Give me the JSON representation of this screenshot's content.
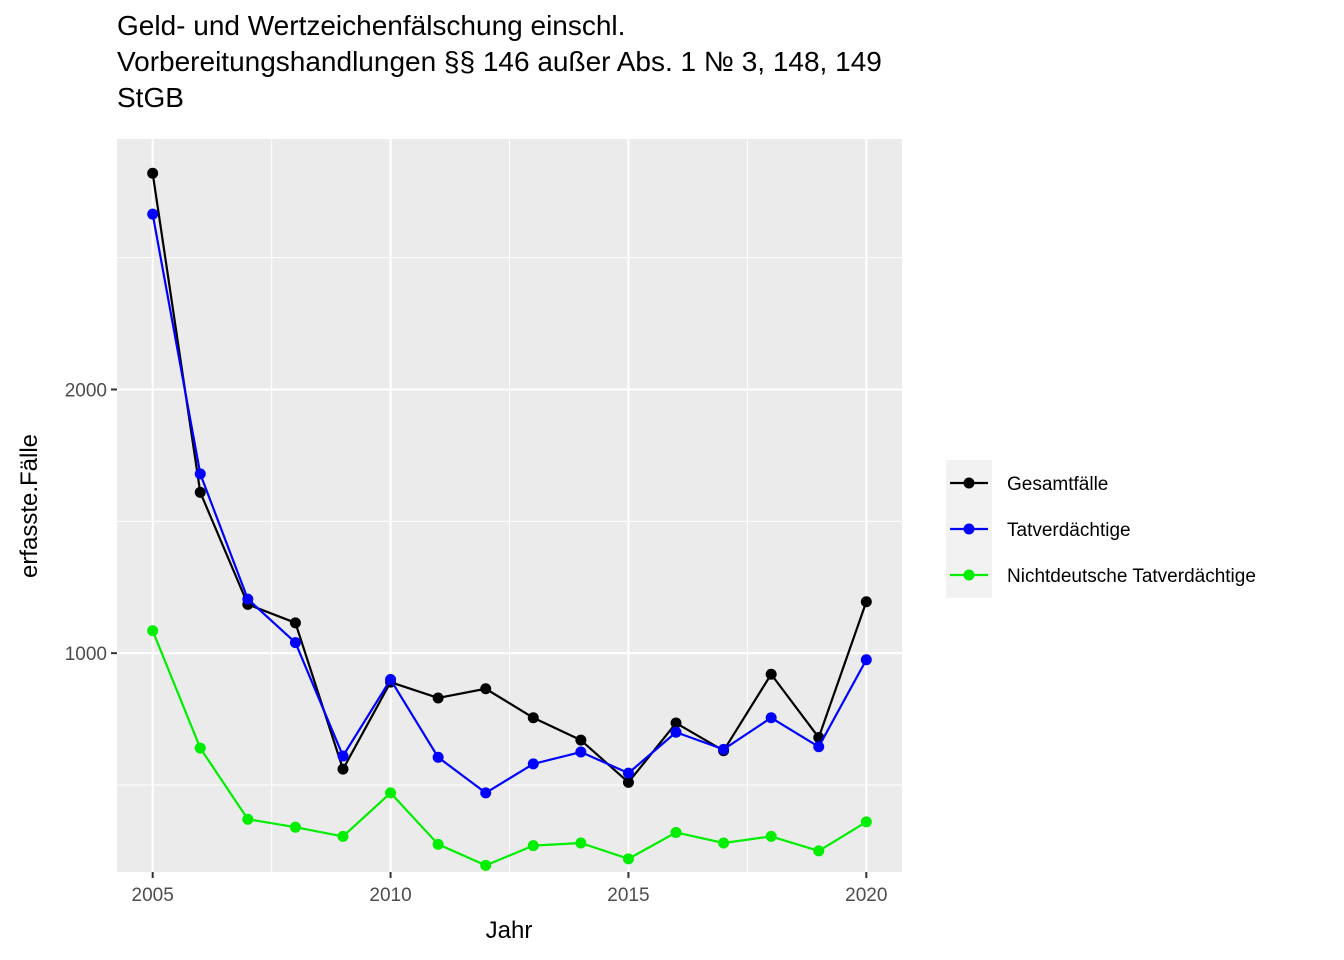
{
  "chart_data": {
    "type": "line",
    "title_lines": [
      "Geld- und Wertzeichenfälschung einschl.",
      "Vorbereitungshandlungen §§ 146 außer Abs. 1 № 3, 148, 149",
      "StGB"
    ],
    "xlabel": "Jahr",
    "ylabel": "erfasste.Fälle",
    "x": [
      2005,
      2006,
      2007,
      2008,
      2009,
      2010,
      2011,
      2012,
      2013,
      2014,
      2015,
      2016,
      2017,
      2018,
      2019,
      2020
    ],
    "xlim": [
      2004.25,
      2020.75
    ],
    "ylim": [
      170,
      2950
    ],
    "x_ticks": [
      2005,
      2010,
      2015,
      2020
    ],
    "y_ticks": [
      1000,
      2000
    ],
    "grid": true,
    "legend_position": "right",
    "series": [
      {
        "name": "Gesamtfälle",
        "color": "#000000",
        "values": [
          2820,
          1610,
          1185,
          1115,
          560,
          890,
          830,
          865,
          755,
          670,
          510,
          735,
          630,
          920,
          680,
          1195
        ]
      },
      {
        "name": "Tatverdächtige",
        "color": "#0000FF",
        "values": [
          2665,
          1680,
          1205,
          1040,
          610,
          900,
          605,
          470,
          580,
          625,
          545,
          700,
          635,
          755,
          645,
          975
        ]
      },
      {
        "name": "Nichtdeutsche Tatverdächtige",
        "color": "#00EE00",
        "values": [
          1085,
          640,
          370,
          340,
          305,
          470,
          275,
          195,
          270,
          280,
          220,
          320,
          280,
          305,
          250,
          360
        ]
      }
    ]
  }
}
